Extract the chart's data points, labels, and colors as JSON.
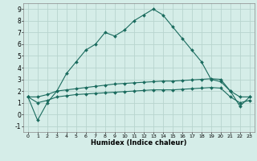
{
  "xlabel": "Humidex (Indice chaleur)",
  "ylabel": "",
  "bg_color": "#d5ede8",
  "grid_color": "#b8d4ce",
  "line_color": "#1a6b5e",
  "x_ticks": [
    0,
    1,
    2,
    3,
    4,
    5,
    6,
    7,
    8,
    9,
    10,
    11,
    12,
    13,
    14,
    15,
    16,
    17,
    18,
    19,
    20,
    21,
    22,
    23
  ],
  "y_ticks": [
    -1,
    0,
    1,
    2,
    3,
    4,
    5,
    6,
    7,
    8,
    9
  ],
  "ylim": [
    -1.5,
    9.5
  ],
  "xlim": [
    -0.5,
    23.5
  ],
  "series1_x": [
    0,
    1,
    2,
    3,
    4,
    5,
    6,
    7,
    8,
    9,
    10,
    11,
    12,
    13,
    14,
    15,
    16,
    17,
    18,
    19,
    20,
    21,
    22,
    23
  ],
  "series1_y": [
    1.5,
    -0.5,
    1.0,
    2.0,
    3.5,
    4.5,
    5.5,
    6.0,
    7.0,
    6.7,
    7.2,
    8.0,
    8.5,
    9.0,
    8.5,
    7.5,
    6.5,
    5.5,
    4.5,
    3.0,
    2.8,
    2.0,
    0.7,
    1.5
  ],
  "series2_x": [
    0,
    1,
    2,
    3,
    4,
    5,
    6,
    7,
    8,
    9,
    10,
    11,
    12,
    13,
    14,
    15,
    16,
    17,
    18,
    19,
    20,
    21,
    22,
    23
  ],
  "series2_y": [
    1.5,
    1.5,
    1.7,
    2.0,
    2.1,
    2.2,
    2.3,
    2.4,
    2.5,
    2.6,
    2.65,
    2.7,
    2.75,
    2.8,
    2.85,
    2.85,
    2.9,
    2.95,
    3.0,
    3.05,
    3.0,
    2.0,
    1.5,
    1.5
  ],
  "series3_x": [
    0,
    1,
    2,
    3,
    4,
    5,
    6,
    7,
    8,
    9,
    10,
    11,
    12,
    13,
    14,
    15,
    16,
    17,
    18,
    19,
    20,
    21,
    22,
    23
  ],
  "series3_y": [
    1.5,
    1.0,
    1.2,
    1.5,
    1.6,
    1.7,
    1.75,
    1.8,
    1.85,
    1.9,
    1.95,
    2.0,
    2.05,
    2.1,
    2.1,
    2.1,
    2.15,
    2.2,
    2.25,
    2.3,
    2.25,
    1.5,
    1.0,
    1.2
  ]
}
